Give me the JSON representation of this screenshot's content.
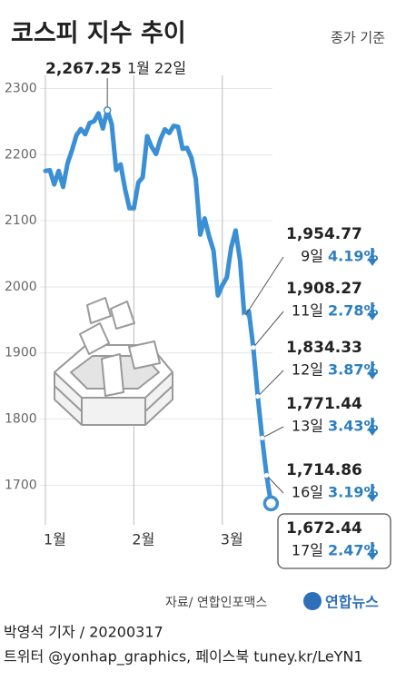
{
  "chart_data": {
    "type": "line",
    "title": "코스피 지수 추이",
    "subtitle": "종가 기준",
    "source": "자료/ 연합인포맥스",
    "logo": "연합뉴스",
    "credit": "박영석 기자 / 20200317",
    "sns": "트위터 @yonhap_graphics, 페이스북 tuney.kr/LeYN1",
    "categories": [
      "1월",
      null,
      null,
      null,
      null,
      null,
      null,
      null,
      null,
      null,
      null,
      null,
      null,
      null,
      null,
      null,
      null,
      null,
      null,
      null,
      "2월",
      null,
      null,
      null,
      null,
      null,
      null,
      null,
      null,
      null,
      null,
      null,
      null,
      null,
      null,
      null,
      null,
      null,
      null,
      null,
      "3월",
      null,
      null,
      null,
      null,
      null,
      null,
      null,
      null,
      null,
      null,
      null
    ],
    "series": [
      {
        "name": "코스피",
        "color": "#3b8fd4",
        "values": [
          2175.54,
          2176.46,
          2155.07,
          2175.54,
          2151.31,
          2186.45,
          2206.39,
          2229.26,
          2238.88,
          2230.98,
          2248.05,
          2250.57,
          2262.64,
          2239.69,
          2267.25,
          2246.13,
          2176.72,
          2185.28,
          2148.0,
          2119.01,
          2118.88,
          2157.9,
          2165.63,
          2227.94,
          2211.95,
          2201.07,
          2223.12,
          2238.38,
          2232.76,
          2243.59,
          2242.17,
          2208.88,
          2210.34,
          2195.5,
          2162.84,
          2079.04,
          2103.61,
          2076.77,
          2054.89,
          1987.01,
          2002.51,
          2014.15,
          2059.33,
          2085.26,
          2040.22,
          1954.77,
          1962.93,
          1908.27,
          1834.33,
          1771.44,
          1714.86,
          1672.44
        ],
        "value_labels": [
          null,
          null,
          null,
          null,
          null,
          null,
          null,
          null,
          null,
          null,
          null,
          null,
          null,
          null,
          "2,267.25",
          null,
          null,
          null,
          null,
          null,
          null,
          null,
          null,
          null,
          null,
          null,
          null,
          null,
          null,
          null,
          null,
          null,
          null,
          null,
          null,
          null,
          null,
          null,
          null,
          null,
          null,
          null,
          null,
          null,
          null,
          "1,954.77",
          null,
          "1,908.27",
          "1,834.33",
          "1,771.44",
          "1,714.86",
          "1,672.44"
        ],
        "date_labels": [
          null,
          null,
          null,
          null,
          null,
          null,
          null,
          null,
          null,
          null,
          null,
          null,
          null,
          null,
          "1월 22일",
          null,
          null,
          null,
          null,
          null,
          null,
          null,
          null,
          null,
          null,
          null,
          null,
          null,
          null,
          null,
          null,
          null,
          null,
          null,
          null,
          null,
          null,
          null,
          null,
          null,
          null,
          null,
          null,
          null,
          null,
          "9일",
          null,
          "11일",
          "12일",
          "13일",
          "16일",
          "17일"
        ],
        "change_labels": [
          null,
          null,
          null,
          null,
          null,
          null,
          null,
          null,
          null,
          null,
          null,
          null,
          null,
          null,
          null,
          null,
          null,
          null,
          null,
          null,
          null,
          null,
          null,
          null,
          null,
          null,
          null,
          null,
          null,
          null,
          null,
          null,
          null,
          null,
          null,
          null,
          null,
          null,
          null,
          null,
          null,
          null,
          null,
          null,
          null,
          "4.19%",
          null,
          "2.78%",
          "3.87%",
          "3.43%",
          "3.19%",
          "2.47%"
        ]
      }
    ],
    "ylim": [
      1640,
      2320
    ],
    "yticks": [
      1700,
      1800,
      1900,
      2000,
      2100,
      2200,
      2300
    ],
    "grid": true
  }
}
